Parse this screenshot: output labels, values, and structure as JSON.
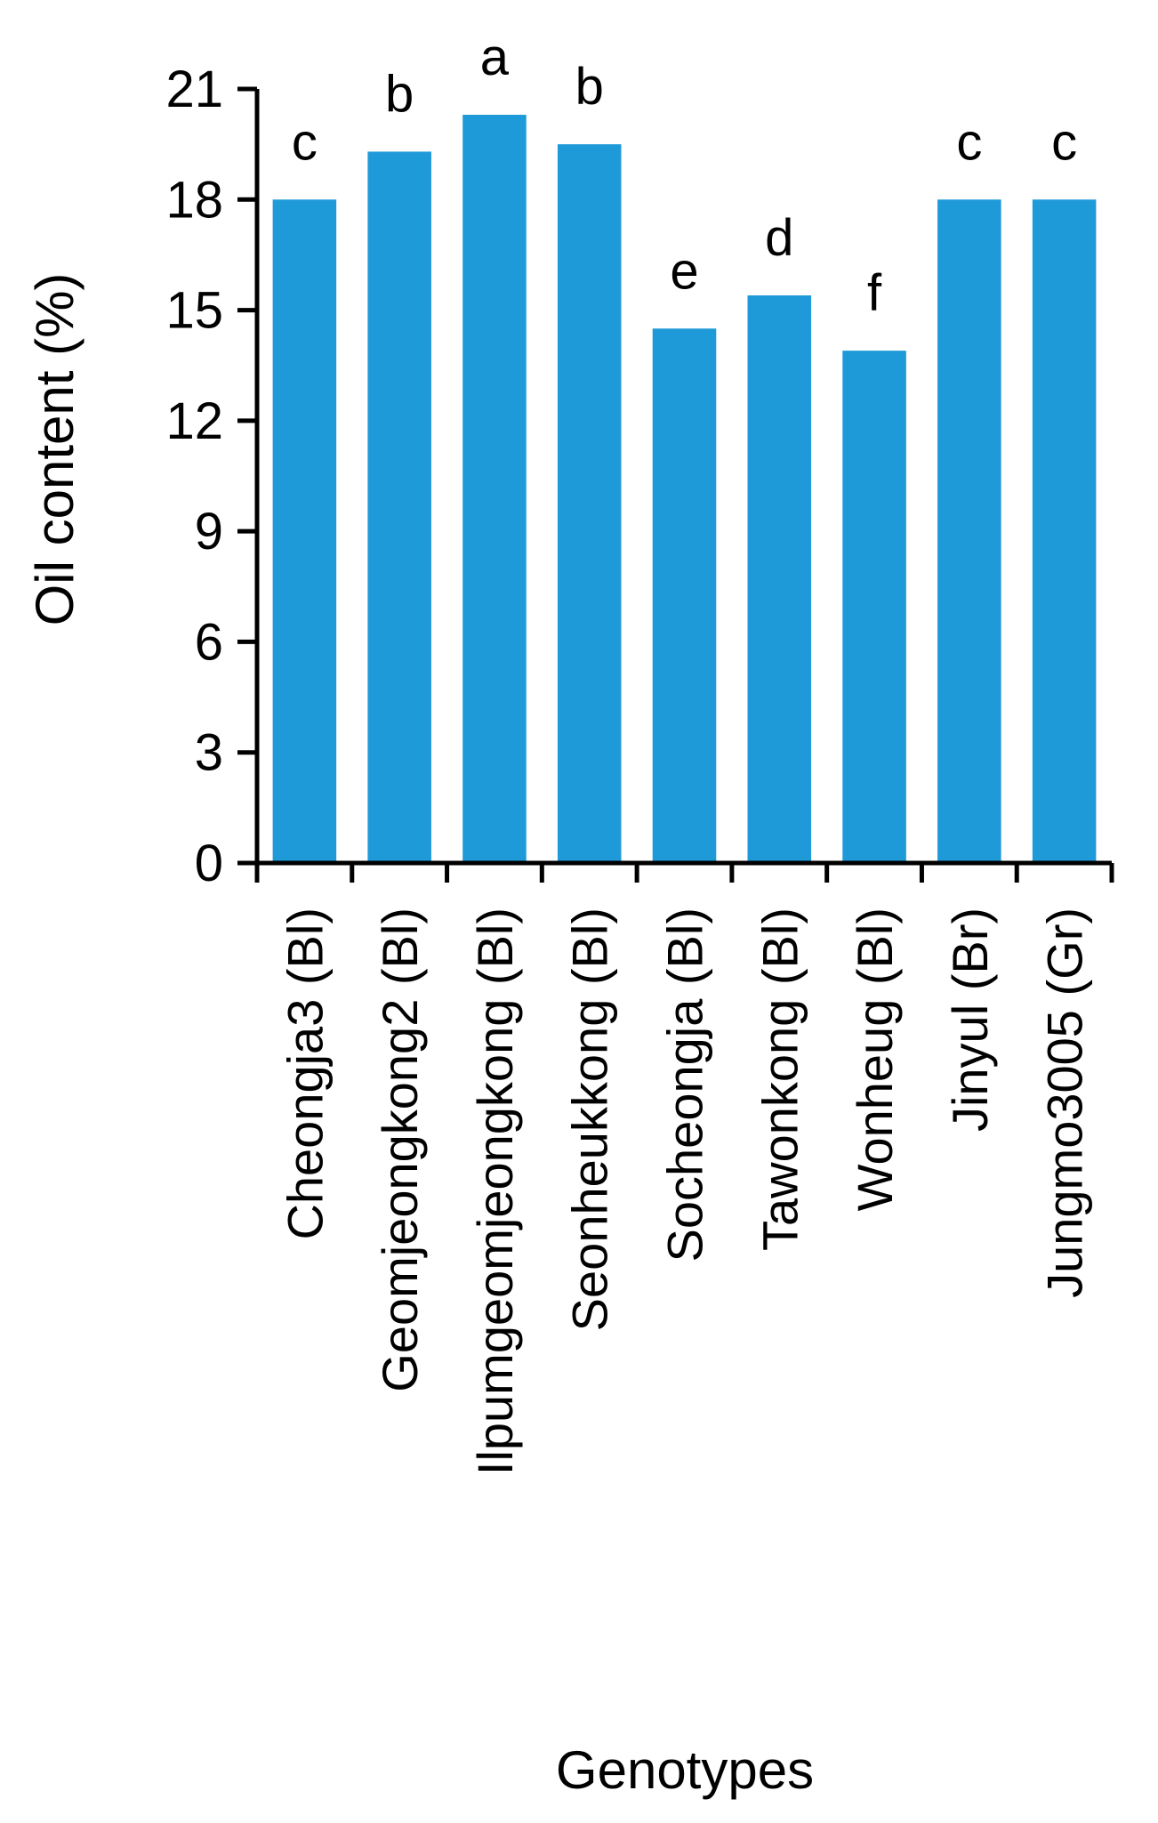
{
  "chart_data": {
    "type": "bar",
    "categories": [
      "Cheongja3 (Bl)",
      "Geomjeongkong2 (Bl)",
      "Ilpumgeomjeongkong (Bl)",
      "Seonheukkong (Bl)",
      "Socheongja (Bl)",
      "Tawonkong (Bl)",
      "Wonheug (Bl)",
      "Jinyul (Br)",
      "Jungmo3005 (Gr)"
    ],
    "values": [
      18.0,
      19.3,
      20.3,
      19.5,
      14.5,
      15.4,
      13.9,
      18.0,
      18.0
    ],
    "significance_letters": [
      "c",
      "b",
      "a",
      "b",
      "e",
      "d",
      "f",
      "c",
      "c"
    ],
    "xlabel": "Genotypes",
    "ylabel": "Oil content (%)",
    "ylim": [
      0,
      21
    ],
    "yticks": [
      0,
      3,
      6,
      9,
      12,
      15,
      18,
      21
    ],
    "grid": false,
    "legend": "none",
    "bar_color": "#1f9ad8"
  }
}
